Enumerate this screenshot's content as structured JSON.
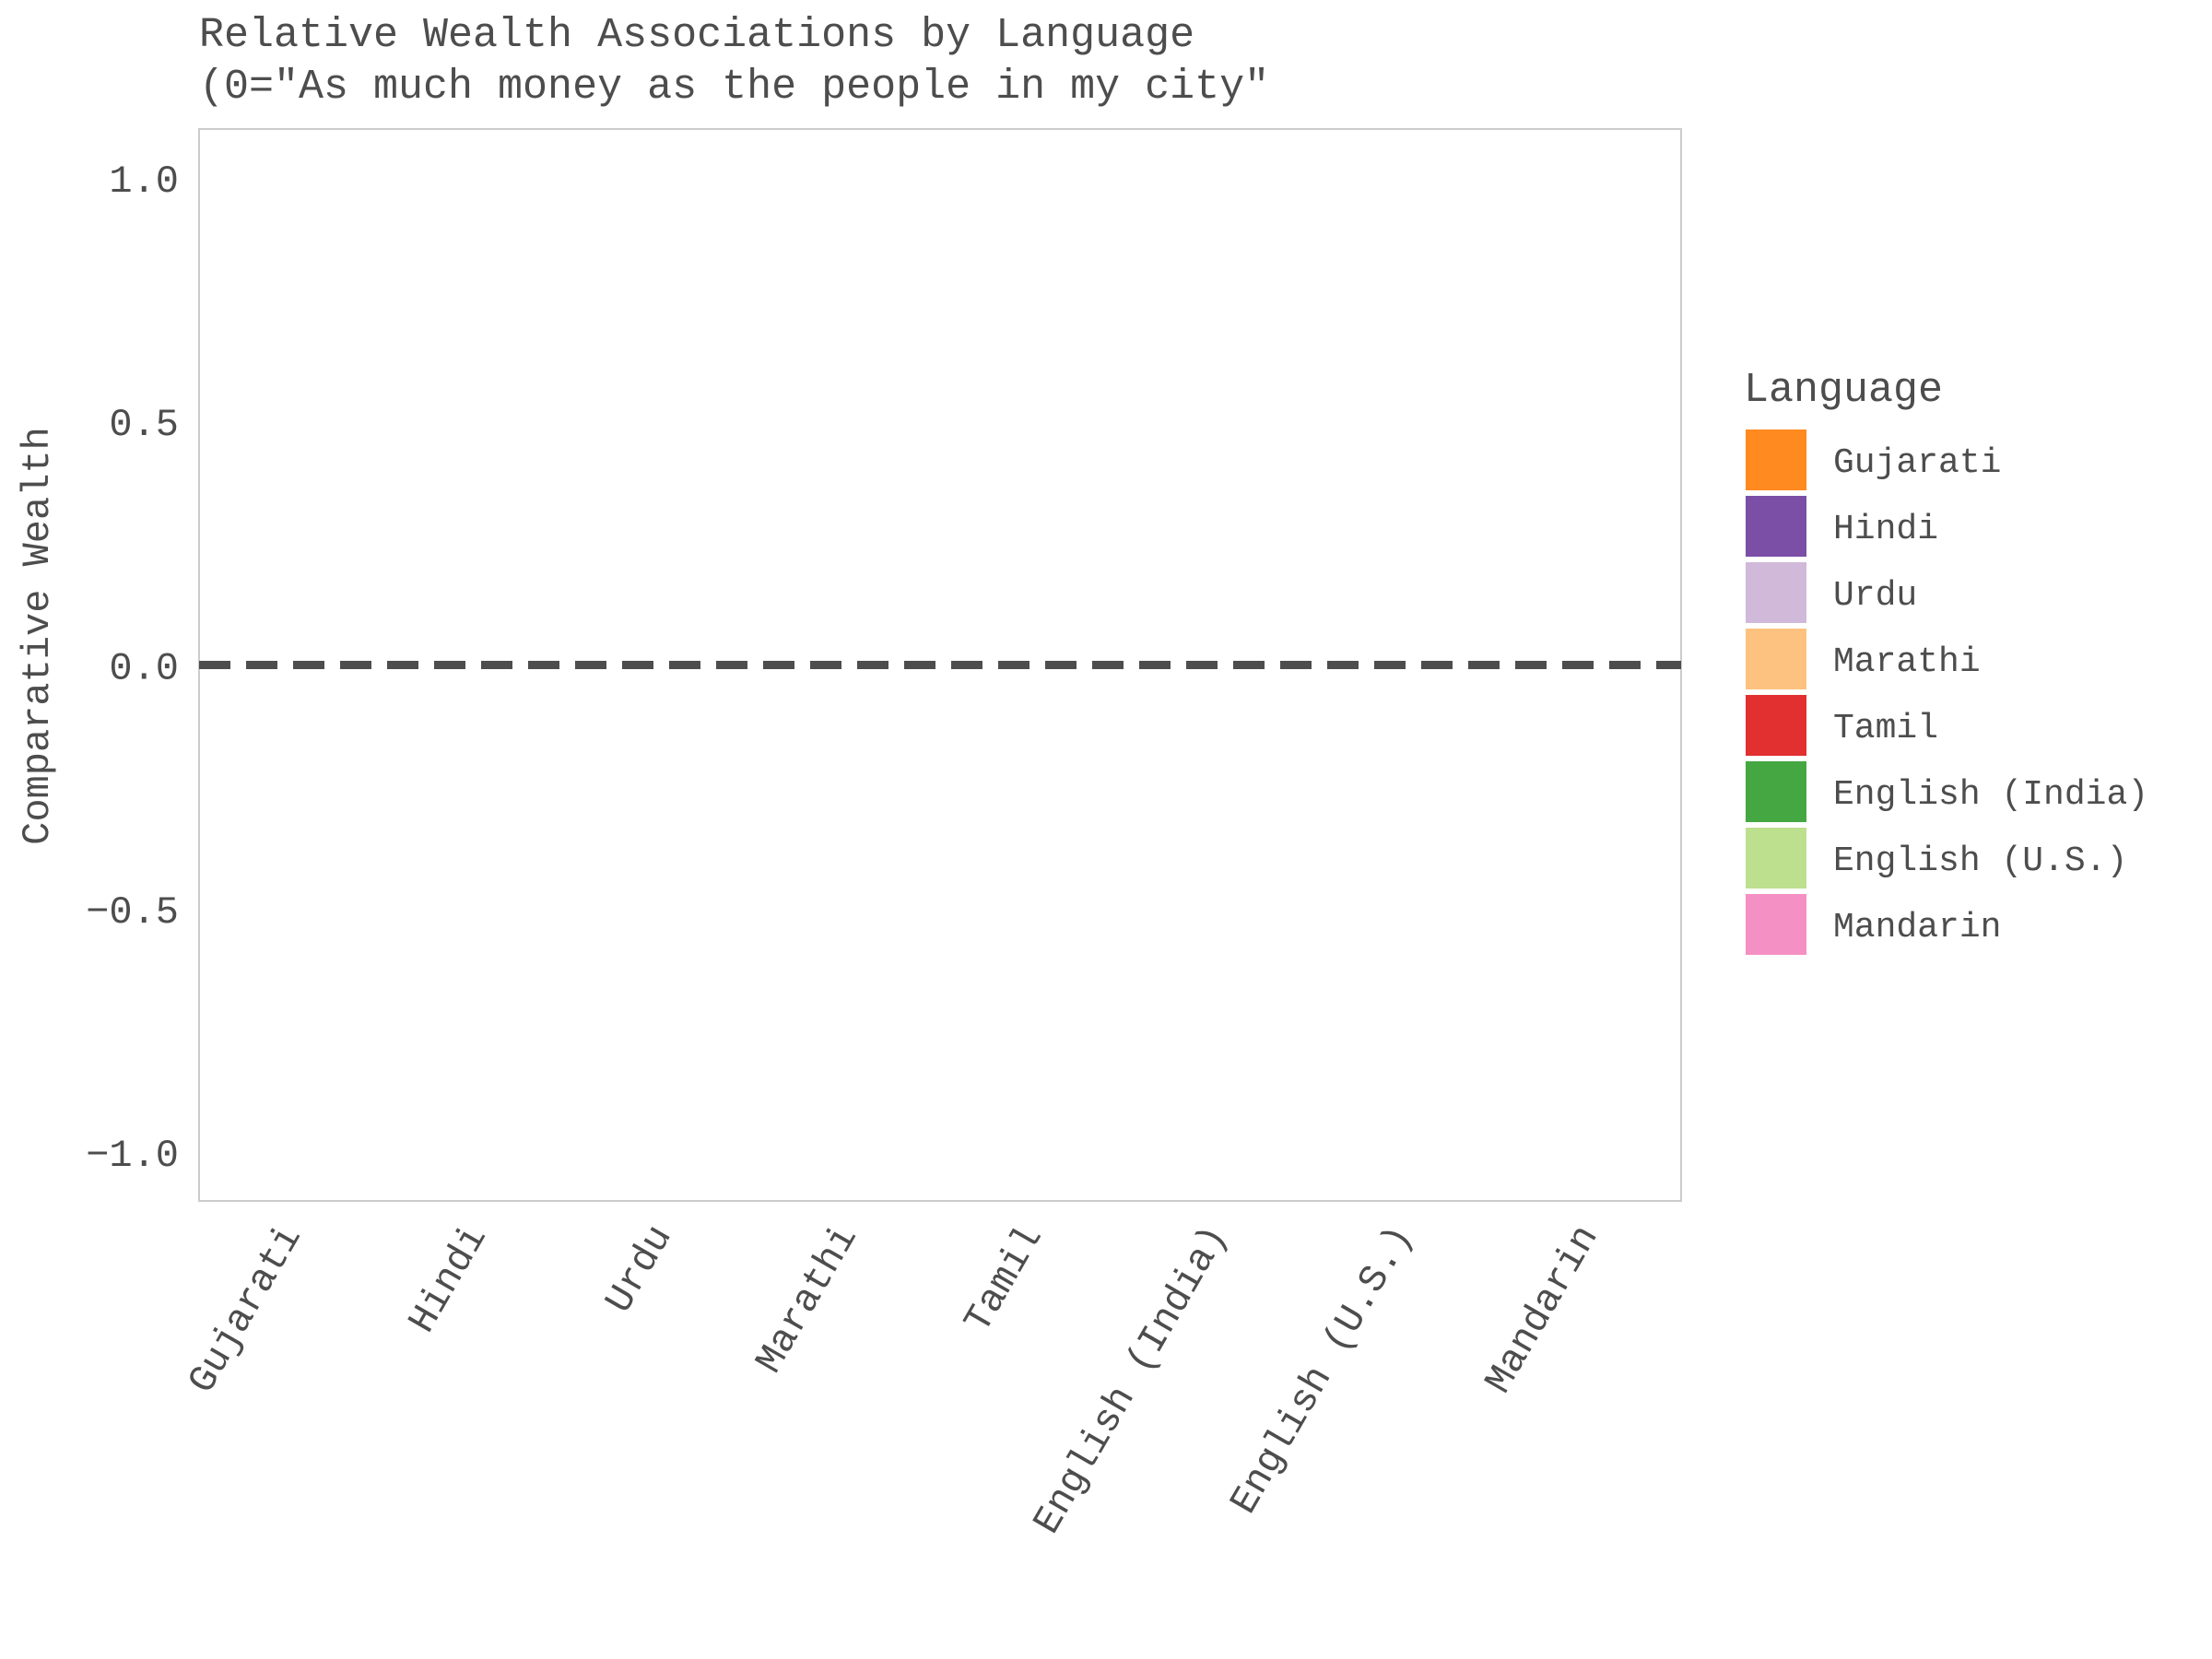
{
  "chart_data": {
    "type": "bar",
    "title": "Relative Wealth Associations by Language",
    "subtitle": "(0=\"As much money as the people in my city\"",
    "ylabel": "Comparative Wealth",
    "xlabel": "",
    "categories": [
      "Gujarati",
      "Hindi",
      "Urdu",
      "Marathi",
      "Tamil",
      "English (India)",
      "English (U.S.)",
      "Mandarin"
    ],
    "values": [
      null,
      null,
      null,
      null,
      null,
      null,
      null,
      null
    ],
    "ylim": [
      -1.1,
      1.1
    ],
    "yticks": [
      1.0,
      0.5,
      0.0,
      -0.5,
      -1.0
    ],
    "ytick_labels": [
      "1.0",
      "0.5",
      "0.0",
      "−0.5",
      "−1.0"
    ],
    "reference_line": {
      "y": 0,
      "style": "dashed",
      "color": "#4d4d4d"
    },
    "grid": false,
    "legend": {
      "title": "Language",
      "position": "right",
      "entries": [
        {
          "label": "Gujarati",
          "color": "#ff8a1f"
        },
        {
          "label": "Hindi",
          "color": "#7b4fa6"
        },
        {
          "label": "Urdu",
          "color": "#d1b9d9"
        },
        {
          "label": "Marathi",
          "color": "#fdc27f"
        },
        {
          "label": "Tamil",
          "color": "#e22f2f"
        },
        {
          "label": "English (India)",
          "color": "#45a742"
        },
        {
          "label": "English (U.S.)",
          "color": "#bde08e"
        },
        {
          "label": "Mandarin",
          "color": "#f590c4"
        }
      ]
    }
  }
}
